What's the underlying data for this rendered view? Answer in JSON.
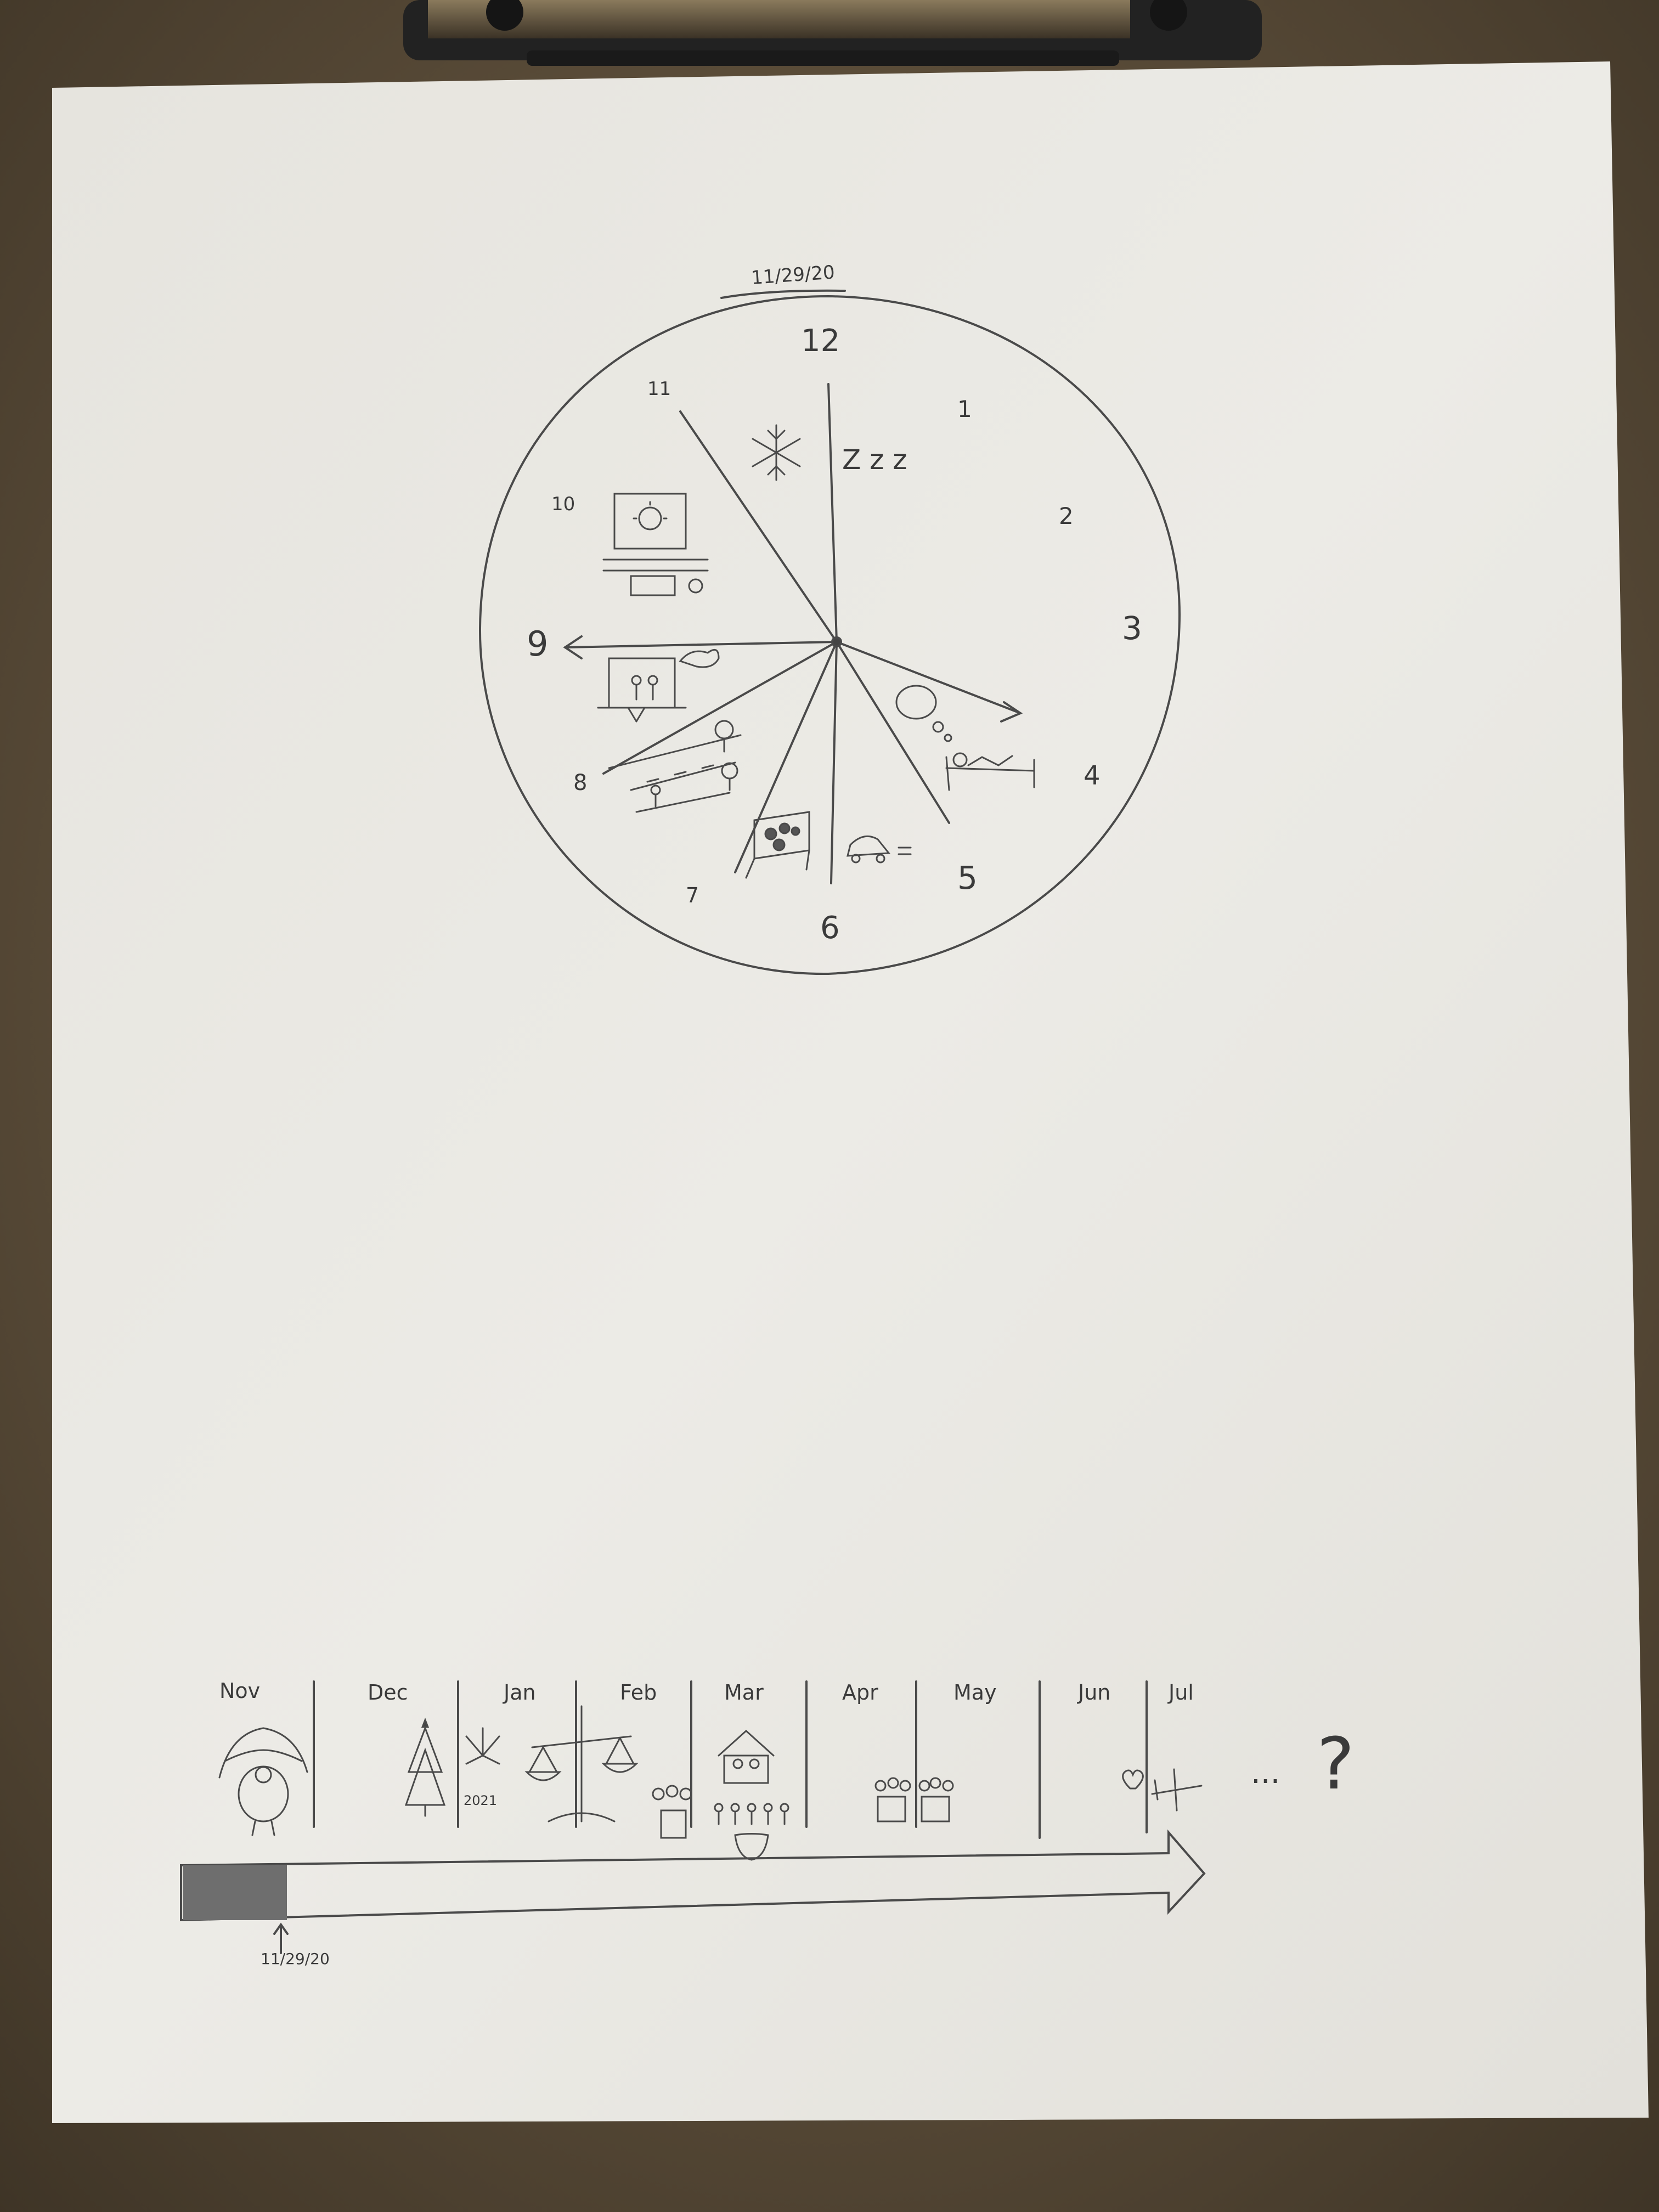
{
  "clock": {
    "date_label": "11/29/20",
    "numbers": [
      "12",
      "1",
      "2",
      "3",
      "4",
      "5",
      "6",
      "7",
      "8",
      "9",
      "10",
      "11"
    ],
    "sleep_mark": "Z z z",
    "icons": {
      "snowflake": "snowflake-icon",
      "computer": "computer-icon",
      "easel": "easel-icon",
      "walk": "walk-icon",
      "table_food": "food-icon",
      "car": "car-icon",
      "bed": "bed-icon",
      "thought": "thought-bubble-icon"
    }
  },
  "timeline": {
    "months": [
      "Nov",
      "Dec",
      "Jan",
      "Feb",
      "Mar",
      "Apr",
      "May",
      "Jun",
      "Jul"
    ],
    "year_label": "2021",
    "current_date_label": "11/29/20",
    "ellipsis": "...",
    "question": "?",
    "icons": [
      "turkey-icon",
      "christmas-tree-icon",
      "fireworks-icon",
      "scales-icon",
      "plant-pot-icon",
      "house-icon",
      "people-icon",
      "mask-icon",
      "plant-pot-icon",
      "heart-icon",
      "airplane-icon"
    ]
  },
  "colors": {
    "clipboard": "#6b5a44",
    "paper": "#ebe9e3",
    "pencil": "#3a3a3a",
    "clip": "#2a2a2a"
  }
}
